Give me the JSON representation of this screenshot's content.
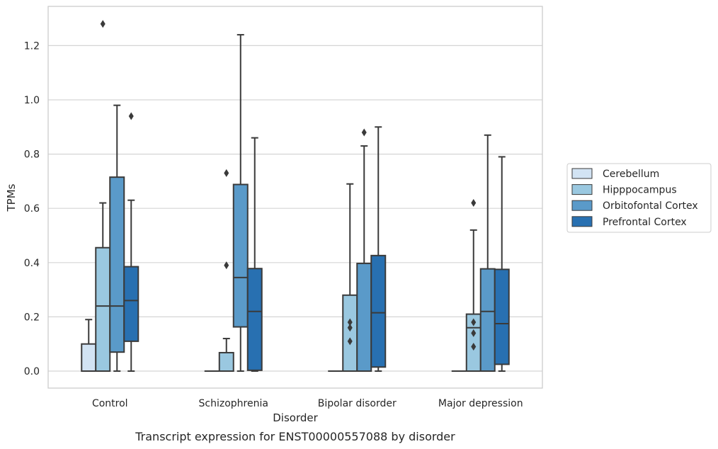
{
  "chart_data": {
    "type": "box",
    "title": "",
    "xlabel": "Disorder",
    "ylabel": "TPMs",
    "caption": "Transcript expression for ENST00000557088 by disorder",
    "ylim": [
      -0.06,
      1.35
    ],
    "yticks": [
      "0.0",
      "0.2",
      "0.4",
      "0.6",
      "0.8",
      "1.0",
      "1.2"
    ],
    "grid": "horizontal",
    "legend_position": "right",
    "categories": [
      "Control",
      "Schizophrenia",
      "Bipolar disorder",
      "Major depression"
    ],
    "series": [
      {
        "name": "Cerebellum",
        "color": "#d2e3f3",
        "boxes": [
          {
            "min": 0.0,
            "q1": 0.0,
            "median": 0.0,
            "q3": 0.1,
            "max": 0.19,
            "outliers": []
          },
          {
            "min": 0.0,
            "q1": 0.0,
            "median": 0.0,
            "q3": 0.0,
            "max": 0.0,
            "outliers": []
          },
          {
            "min": 0.0,
            "q1": 0.0,
            "median": 0.0,
            "q3": 0.0,
            "max": 0.0,
            "outliers": []
          },
          {
            "min": 0.0,
            "q1": 0.0,
            "median": 0.0,
            "q3": 0.0,
            "max": 0.0,
            "outliers": []
          }
        ]
      },
      {
        "name": "Hipppocampus",
        "color": "#9ac8e0",
        "boxes": [
          {
            "min": 0.0,
            "q1": 0.0,
            "median": 0.24,
            "q3": 0.455,
            "max": 0.62,
            "outliers": [
              1.28
            ]
          },
          {
            "min": 0.0,
            "q1": 0.0,
            "median": 0.0,
            "q3": 0.068,
            "max": 0.12,
            "outliers": [
              0.39,
              0.73
            ]
          },
          {
            "min": 0.0,
            "q1": 0.0,
            "median": 0.0,
            "q3": 0.28,
            "max": 0.69,
            "outliers": [
              0.11,
              0.16,
              0.18
            ]
          },
          {
            "min": 0.0,
            "q1": 0.0,
            "median": 0.16,
            "q3": 0.21,
            "max": 0.52,
            "outliers": [
              0.09,
              0.14,
              0.18,
              0.62
            ]
          }
        ]
      },
      {
        "name": "Orbitofontal Cortex",
        "color": "#5a9ac9",
        "boxes": [
          {
            "min": 0.0,
            "q1": 0.07,
            "median": 0.24,
            "q3": 0.715,
            "max": 0.98,
            "outliers": []
          },
          {
            "min": 0.0,
            "q1": 0.163,
            "median": 0.345,
            "q3": 0.688,
            "max": 1.24,
            "outliers": []
          },
          {
            "min": 0.0,
            "q1": 0.0,
            "median": 0.0,
            "q3": 0.397,
            "max": 0.83,
            "outliers": [
              0.88
            ]
          },
          {
            "min": 0.0,
            "q1": 0.0,
            "median": 0.22,
            "q3": 0.377,
            "max": 0.87,
            "outliers": []
          }
        ]
      },
      {
        "name": "Prefrontal Cortex",
        "color": "#2870b1",
        "boxes": [
          {
            "min": 0.0,
            "q1": 0.11,
            "median": 0.26,
            "q3": 0.385,
            "max": 0.63,
            "outliers": [
              0.94
            ]
          },
          {
            "min": 0.0,
            "q1": 0.003,
            "median": 0.22,
            "q3": 0.378,
            "max": 0.86,
            "outliers": []
          },
          {
            "min": 0.0,
            "q1": 0.015,
            "median": 0.215,
            "q3": 0.426,
            "max": 0.9,
            "outliers": []
          },
          {
            "min": 0.0,
            "q1": 0.025,
            "median": 0.175,
            "q3": 0.375,
            "max": 0.79,
            "outliers": []
          }
        ]
      }
    ]
  }
}
